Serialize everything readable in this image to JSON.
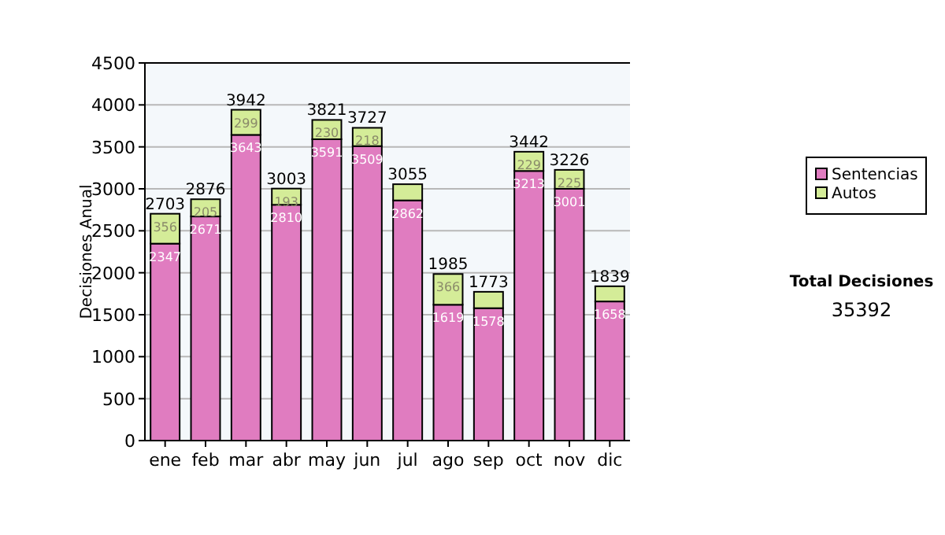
{
  "chart_data": {
    "type": "bar",
    "stacked": true,
    "ylabel": "Decisiones Anual",
    "categories": [
      "ene",
      "feb",
      "mar",
      "abr",
      "may",
      "jun",
      "jul",
      "ago",
      "sep",
      "oct",
      "nov",
      "dic"
    ],
    "series": [
      {
        "name": "Sentencias",
        "color": "#e07cc0",
        "values": [
          2347,
          2671,
          3643,
          2810,
          3591,
          3509,
          2862,
          1619,
          1578,
          3213,
          3001,
          1658
        ],
        "value_labels": [
          "2347",
          "2671",
          "3643",
          "2810",
          "3591",
          "3509",
          "2862",
          "1619",
          "1578",
          "3213",
          "3001",
          "1658"
        ]
      },
      {
        "name": "Autos",
        "color": "#d4ec98",
        "values": [
          356,
          205,
          299,
          193,
          230,
          218,
          193,
          366,
          195,
          229,
          225,
          181
        ],
        "value_labels": [
          "356",
          "205",
          "299",
          "193",
          "230",
          "218",
          null,
          "366",
          null,
          "229",
          "225",
          null
        ]
      }
    ],
    "totals": [
      "2703",
      "2876",
      "3942",
      "3003",
      "3821",
      "3727",
      "3055",
      "1985",
      "1773",
      "3442",
      "3226",
      "1839"
    ],
    "ylim": [
      0,
      4500
    ],
    "yticks": [
      0,
      500,
      1000,
      1500,
      2000,
      2500,
      3000,
      3500,
      4000,
      4500
    ],
    "grid": "y",
    "legend": "right",
    "annotations": [
      "Total Decisiones",
      "35392"
    ]
  }
}
